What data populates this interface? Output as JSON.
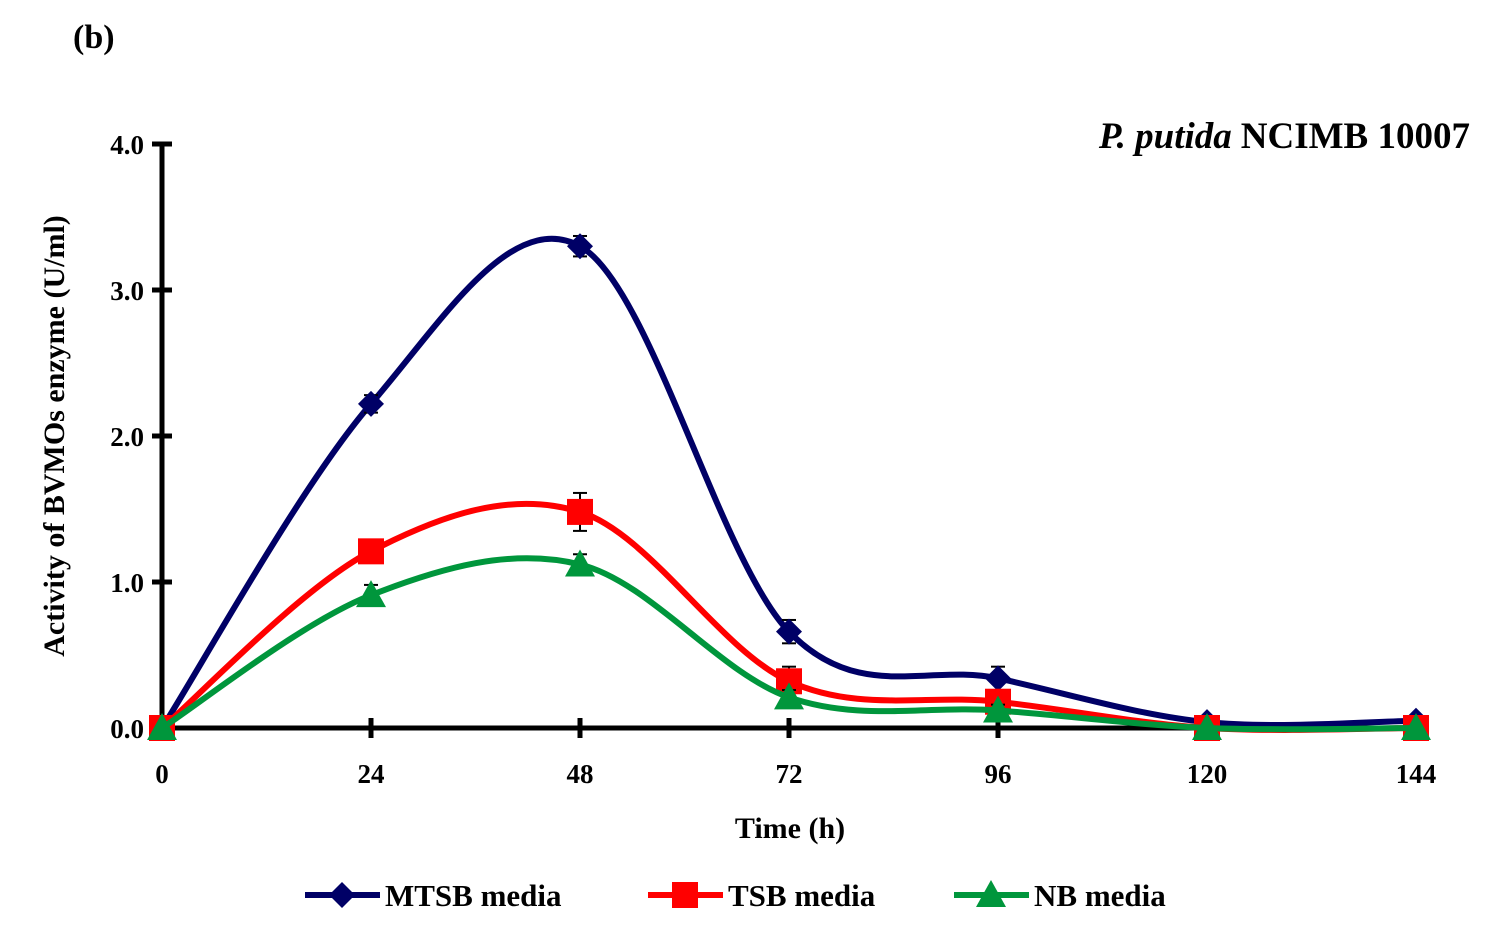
{
  "chart_data": {
    "type": "line",
    "panel_label": "(b)",
    "title_italic": "P. putida",
    "title_rest": "NCIMB 10007",
    "xlabel": "Time (h)",
    "ylabel": "Activity of BVMOs enzyme (U/ml)",
    "x": [
      0,
      24,
      48,
      72,
      96,
      120,
      144
    ],
    "xticks": [
      "0",
      "24",
      "48",
      "72",
      "96",
      "120",
      "144"
    ],
    "xlim": [
      0,
      144
    ],
    "yticks": [
      "0.0",
      "1.0",
      "2.0",
      "3.0",
      "4.0"
    ],
    "ylim": [
      0,
      4
    ],
    "grid": false,
    "legend_position": "bottom",
    "series": [
      {
        "name": "MTSB media",
        "color": "#000066",
        "marker": "diamond",
        "values": [
          0.0,
          2.22,
          3.3,
          0.66,
          0.34,
          0.04,
          0.05
        ],
        "errors": [
          0.0,
          0.06,
          0.07,
          0.08,
          0.08,
          0.01,
          0.01
        ]
      },
      {
        "name": "TSB media",
        "color": "#ff0000",
        "marker": "square",
        "values": [
          0.0,
          1.21,
          1.48,
          0.32,
          0.18,
          0.0,
          0.0
        ],
        "errors": [
          0.0,
          0.04,
          0.13,
          0.1,
          0.04,
          0.0,
          0.0
        ]
      },
      {
        "name": "NB media",
        "color": "#00963c",
        "marker": "triangle",
        "values": [
          0.0,
          0.91,
          1.12,
          0.21,
          0.12,
          0.0,
          0.0
        ],
        "errors": [
          0.0,
          0.07,
          0.07,
          0.05,
          0.04,
          0.0,
          0.0
        ]
      }
    ]
  }
}
